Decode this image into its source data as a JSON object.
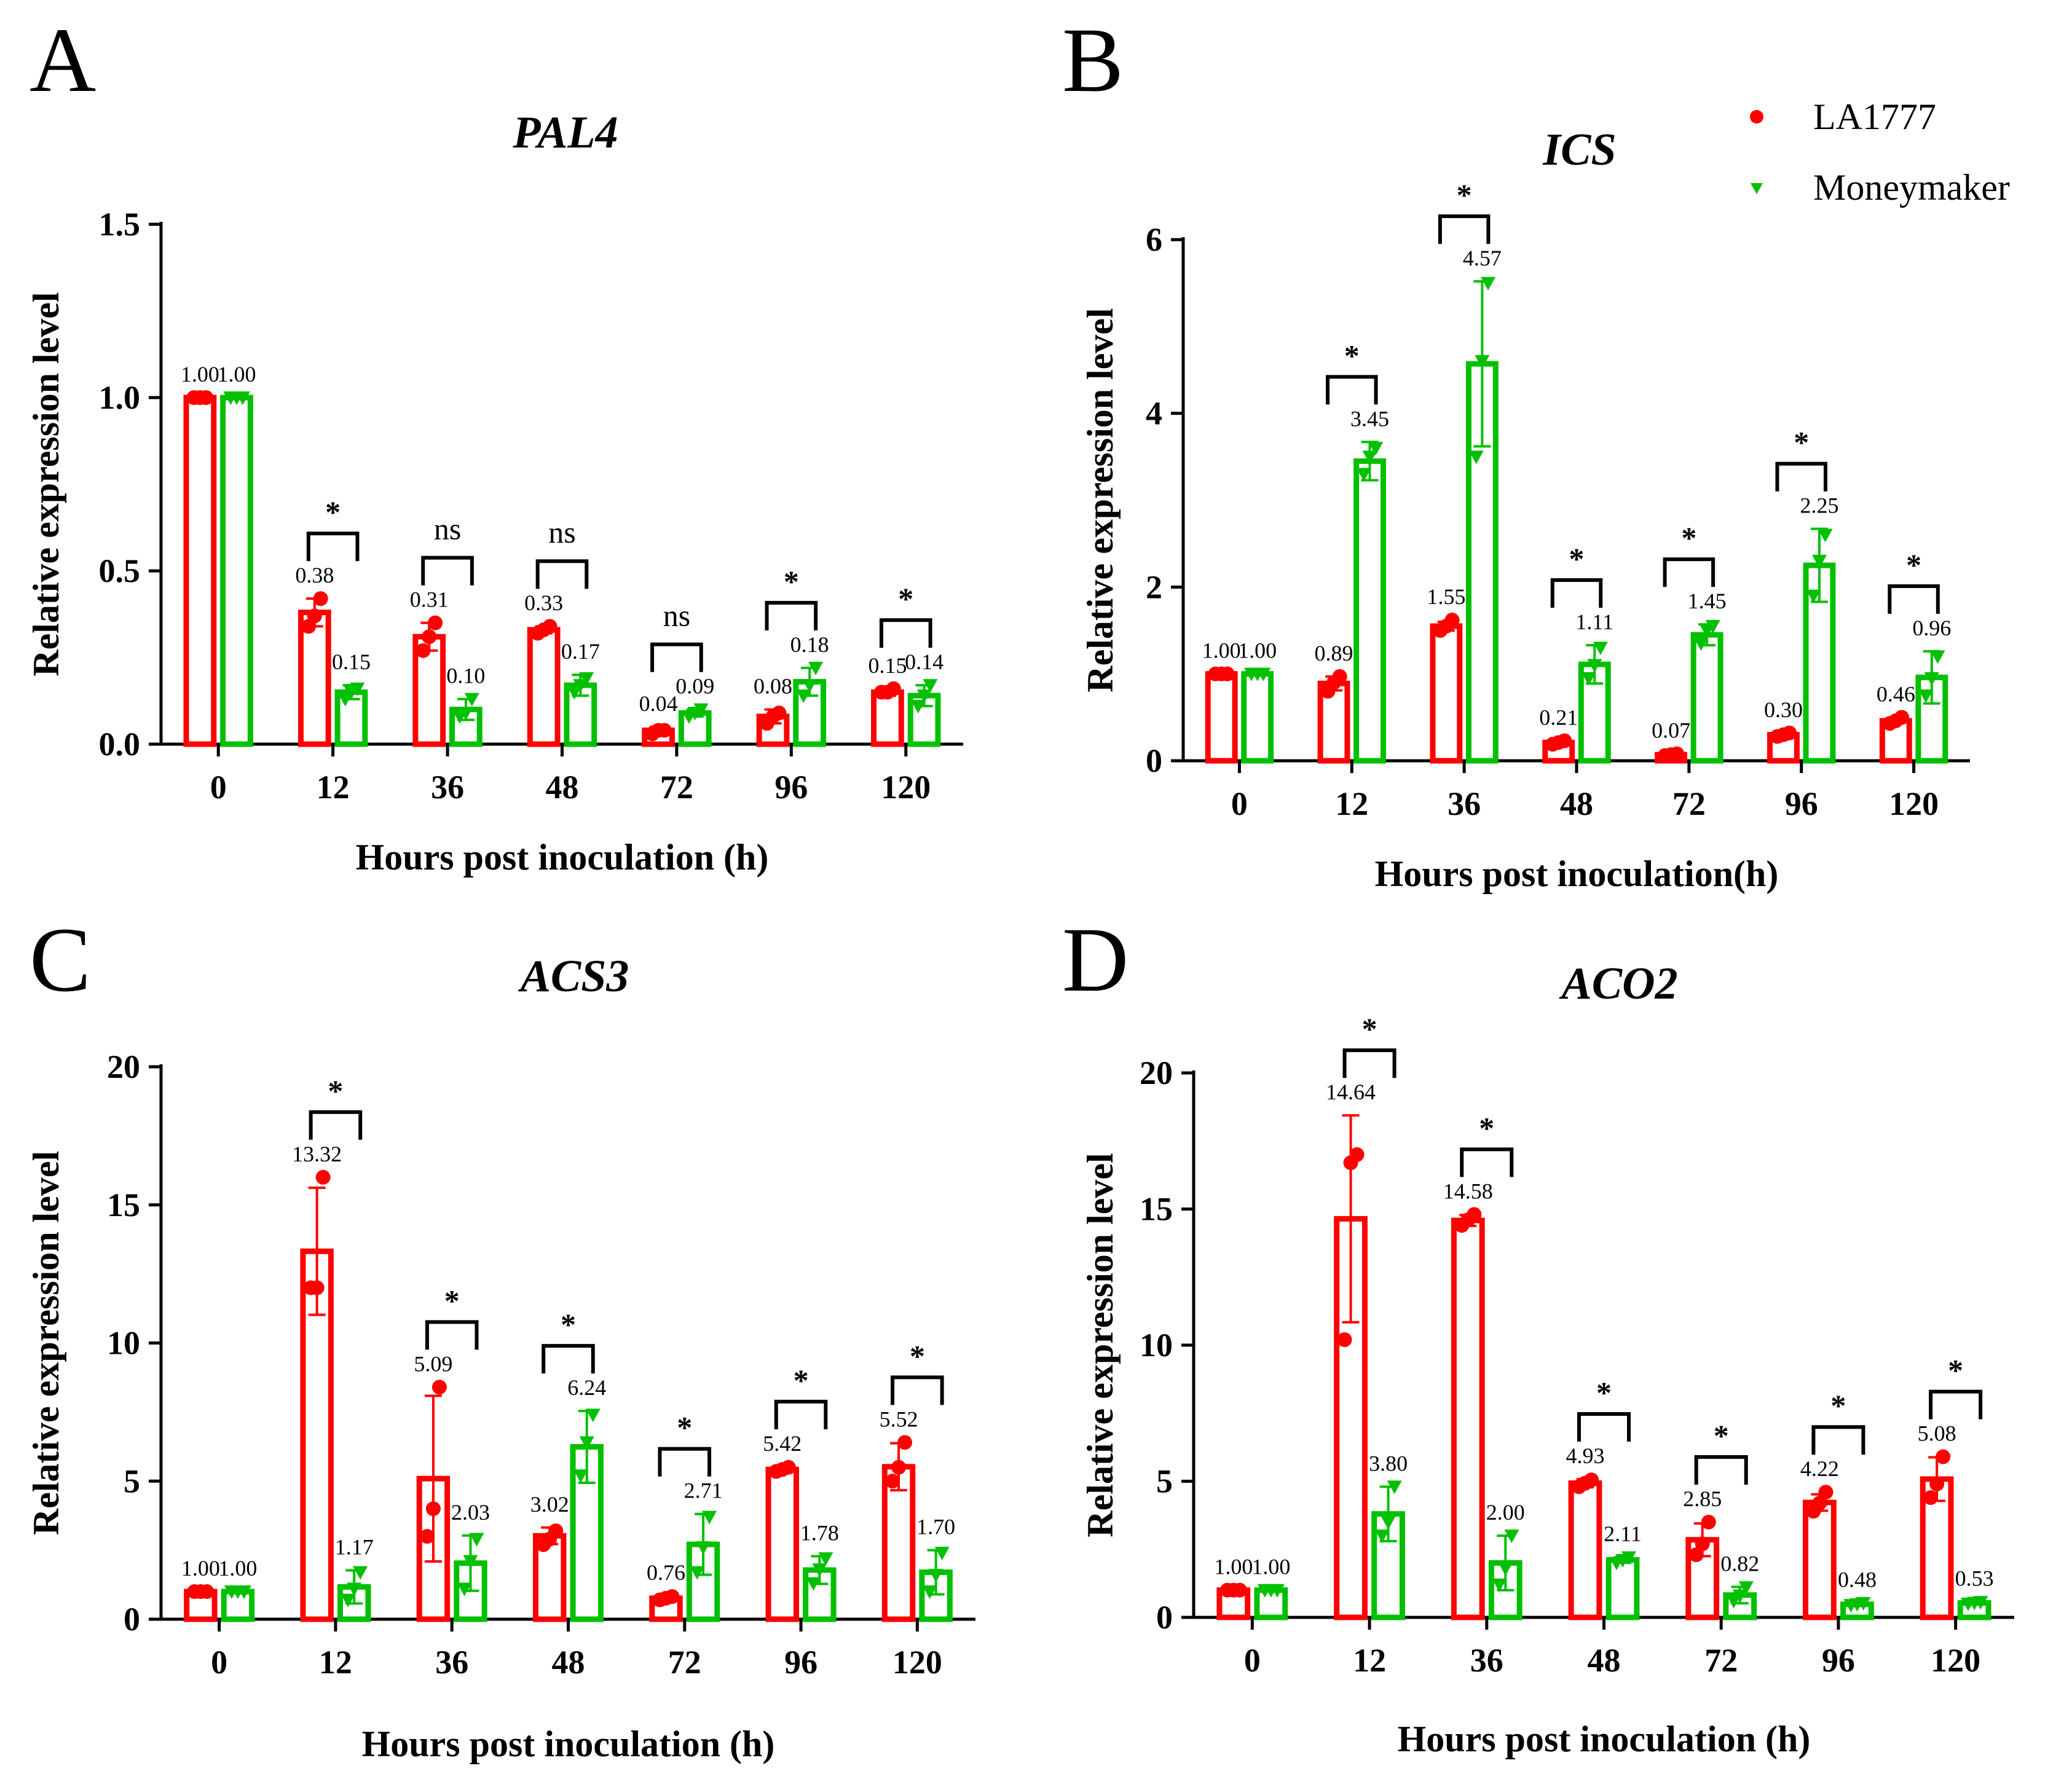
{
  "legend": {
    "series": [
      {
        "name": "LA1777",
        "color": "#ff0000",
        "marker": "circle"
      },
      {
        "name": "Moneymaker",
        "color": "#00c000",
        "marker": "triangle-down"
      }
    ]
  },
  "chart_data": [
    {
      "panel": "A",
      "type": "bar",
      "title": "PAL4",
      "xlabel": "Hours post inoculation (h)",
      "ylabel": "Relative expression level",
      "categories": [
        "0",
        "12",
        "36",
        "48",
        "72",
        "96",
        "120"
      ],
      "ylim": [
        0,
        1.5
      ],
      "yticks": [
        0.0,
        0.5,
        1.0,
        1.5
      ],
      "ytick_labels": [
        "0.0",
        "0.5",
        "1.0",
        "1.5"
      ],
      "series": [
        {
          "name": "LA1777",
          "values": [
            1.0,
            0.38,
            0.31,
            0.33,
            0.04,
            0.08,
            0.15
          ],
          "labels": [
            "1.00",
            "0.38",
            "0.31",
            "0.33",
            "0.04",
            "0.08",
            "0.15"
          ],
          "errors": [
            0.0,
            0.04,
            0.04,
            0.01,
            0.01,
            0.02,
            0.01
          ],
          "points": [
            [
              1.0,
              1.0,
              1.0
            ],
            [
              0.34,
              0.37,
              0.42
            ],
            [
              0.27,
              0.31,
              0.35
            ],
            [
              0.32,
              0.33,
              0.34
            ],
            [
              0.03,
              0.04,
              0.04
            ],
            [
              0.06,
              0.08,
              0.09
            ],
            [
              0.15,
              0.15,
              0.16
            ]
          ]
        },
        {
          "name": "Moneymaker",
          "values": [
            1.0,
            0.15,
            0.1,
            0.17,
            0.09,
            0.18,
            0.14
          ],
          "labels": [
            "1.00",
            "0.15",
            "0.10",
            "0.17",
            "0.09",
            "0.18",
            "0.14"
          ],
          "errors": [
            0.0,
            0.02,
            0.03,
            0.03,
            0.01,
            0.04,
            0.03
          ],
          "points": [
            [
              1.0,
              1.0,
              1.0
            ],
            [
              0.13,
              0.15,
              0.16
            ],
            [
              0.08,
              0.09,
              0.13
            ],
            [
              0.15,
              0.17,
              0.19
            ],
            [
              0.08,
              0.09,
              0.1
            ],
            [
              0.14,
              0.17,
              0.22
            ],
            [
              0.11,
              0.14,
              0.17
            ]
          ]
        }
      ],
      "significance": [
        "",
        "*",
        "ns",
        "ns",
        "ns",
        "*",
        "*"
      ]
    },
    {
      "panel": "B",
      "type": "bar",
      "title": "ICS",
      "xlabel": "Hours post inoculation(h)",
      "ylabel": "Relative expression level",
      "categories": [
        "0",
        "12",
        "36",
        "48",
        "72",
        "96",
        "120"
      ],
      "ylim": [
        0,
        6
      ],
      "yticks": [
        0,
        2,
        4,
        6
      ],
      "ytick_labels": [
        "0",
        "2",
        "4",
        "6"
      ],
      "series": [
        {
          "name": "LA1777",
          "values": [
            1.0,
            0.89,
            1.55,
            0.21,
            0.07,
            0.3,
            0.46
          ],
          "labels": [
            "1.00",
            "0.89",
            "1.55",
            "0.21",
            "0.07",
            "0.30",
            "0.46"
          ],
          "errors": [
            0.0,
            0.08,
            0.05,
            0.02,
            0.01,
            0.02,
            0.03
          ],
          "points": [
            [
              1.0,
              1.0,
              1.0
            ],
            [
              0.8,
              0.9,
              0.97
            ],
            [
              1.5,
              1.55,
              1.62
            ],
            [
              0.19,
              0.21,
              0.23
            ],
            [
              0.06,
              0.07,
              0.08
            ],
            [
              0.28,
              0.3,
              0.32
            ],
            [
              0.43,
              0.46,
              0.5
            ]
          ]
        },
        {
          "name": "Moneymaker",
          "values": [
            1.0,
            3.45,
            4.57,
            1.11,
            1.45,
            2.25,
            0.96
          ],
          "labels": [
            "1.00",
            "3.45",
            "4.57",
            "1.11",
            "1.45",
            "2.25",
            "0.96"
          ],
          "errors": [
            0.0,
            0.22,
            0.95,
            0.22,
            0.12,
            0.42,
            0.3
          ],
          "points": [
            [
              1.0,
              1.0,
              1.0
            ],
            [
              3.3,
              3.5,
              3.6
            ],
            [
              3.5,
              4.6,
              5.5
            ],
            [
              0.95,
              1.1,
              1.3
            ],
            [
              1.35,
              1.5,
              1.55
            ],
            [
              1.9,
              2.3,
              2.6
            ],
            [
              0.75,
              0.95,
              1.2
            ]
          ]
        }
      ],
      "significance": [
        "",
        "*",
        "*",
        "*",
        "*",
        "*",
        "*"
      ]
    },
    {
      "panel": "C",
      "type": "bar",
      "title": "ACS3",
      "xlabel": "Hours post inoculation (h)",
      "ylabel": "Relative expression level",
      "categories": [
        "0",
        "12",
        "36",
        "48",
        "72",
        "96",
        "120"
      ],
      "ylim": [
        0,
        20
      ],
      "yticks": [
        0,
        5,
        10,
        15,
        20
      ],
      "ytick_labels": [
        "0",
        "5",
        "10",
        "15",
        "20"
      ],
      "series": [
        {
          "name": "LA1777",
          "values": [
            1.0,
            13.32,
            5.09,
            3.02,
            0.76,
            5.42,
            5.52
          ],
          "labels": [
            "1.00",
            "13.32",
            "5.09",
            "3.02",
            "0.76",
            "5.42",
            "5.52"
          ],
          "errors": [
            0.0,
            2.3,
            3.0,
            0.3,
            0.08,
            0.1,
            0.85
          ],
          "points": [
            [
              1.0,
              1.0,
              1.0
            ],
            [
              12.0,
              12.0,
              16.0
            ],
            [
              3.0,
              4.0,
              8.4
            ],
            [
              2.7,
              2.9,
              3.2
            ],
            [
              0.7,
              0.76,
              0.82
            ],
            [
              5.35,
              5.42,
              5.5
            ],
            [
              5.0,
              5.5,
              6.4
            ]
          ]
        },
        {
          "name": "Moneymaker",
          "values": [
            1.0,
            1.17,
            2.03,
            6.24,
            2.71,
            1.78,
            1.7
          ],
          "labels": [
            "1.00",
            "1.17",
            "2.03",
            "6.24",
            "2.71",
            "1.78",
            "1.70"
          ],
          "errors": [
            0.0,
            0.6,
            1.0,
            1.3,
            1.1,
            0.5,
            0.8
          ],
          "points": [
            [
              1.0,
              1.0,
              1.0
            ],
            [
              0.7,
              1.1,
              1.7
            ],
            [
              1.1,
              2.1,
              2.9
            ],
            [
              5.2,
              6.4,
              7.4
            ],
            [
              1.7,
              2.6,
              3.7
            ],
            [
              1.3,
              1.8,
              2.2
            ],
            [
              1.0,
              1.6,
              2.4
            ]
          ]
        }
      ],
      "significance": [
        "",
        "*",
        "*",
        "*",
        "*",
        "*",
        "*"
      ]
    },
    {
      "panel": "D",
      "type": "bar",
      "title": "ACO2",
      "xlabel": "Hours post inoculation (h)",
      "ylabel": "Relative expression level",
      "categories": [
        "0",
        "12",
        "36",
        "48",
        "72",
        "96",
        "120"
      ],
      "ylim": [
        0,
        20
      ],
      "yticks": [
        0,
        5,
        10,
        15,
        20
      ],
      "ytick_labels": [
        "0",
        "5",
        "10",
        "15",
        "20"
      ],
      "series": [
        {
          "name": "LA1777",
          "values": [
            1.0,
            14.64,
            14.58,
            4.93,
            2.85,
            4.22,
            5.08
          ],
          "labels": [
            "1.00",
            "14.64",
            "14.58",
            "4.93",
            "2.85",
            "4.22",
            "5.08"
          ],
          "errors": [
            0.0,
            3.8,
            0.2,
            0.15,
            0.6,
            0.3,
            0.8
          ],
          "points": [
            [
              1.0,
              1.0,
              1.0
            ],
            [
              10.2,
              16.7,
              17.0
            ],
            [
              14.4,
              14.6,
              14.8
            ],
            [
              4.8,
              4.93,
              5.05
            ],
            [
              2.3,
              2.7,
              3.5
            ],
            [
              3.9,
              4.2,
              4.6
            ],
            [
              4.4,
              4.9,
              5.9
            ]
          ]
        },
        {
          "name": "Moneymaker",
          "values": [
            1.0,
            3.8,
            2.0,
            2.11,
            0.82,
            0.48,
            0.53
          ],
          "labels": [
            "1.00",
            "3.80",
            "2.00",
            "2.11",
            "0.82",
            "0.48",
            "0.53"
          ],
          "errors": [
            0.0,
            1.0,
            1.0,
            0.1,
            0.3,
            0.05,
            0.05
          ],
          "points": [
            [
              1.0,
              1.0,
              1.0
            ],
            [
              3.0,
              3.5,
              4.8
            ],
            [
              1.2,
              1.8,
              3.0
            ],
            [
              2.0,
              2.1,
              2.2
            ],
            [
              0.6,
              0.8,
              1.1
            ],
            [
              0.45,
              0.48,
              0.52
            ],
            [
              0.5,
              0.53,
              0.56
            ]
          ]
        }
      ],
      "significance": [
        "",
        "*",
        "*",
        "*",
        "*",
        "*",
        "*"
      ]
    }
  ]
}
